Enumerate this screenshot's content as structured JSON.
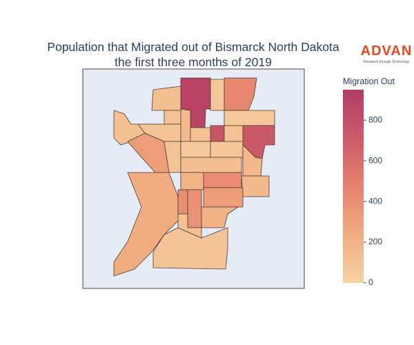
{
  "chart_data": {
    "type": "choropleth",
    "title": [
      "Population that Migrated out of Bismarck North Dakota",
      "the first three months of 2019"
    ],
    "logo": {
      "name": "ADVAN",
      "tagline": "Research through Technology"
    },
    "colorbar_title": "Migration Out",
    "zlim": [
      0,
      950
    ],
    "zticks": [
      0,
      200,
      400,
      600,
      800
    ],
    "colorscale": [
      "#f6d3a4",
      "#f1ac7f",
      "#e6836d",
      "#cc5b69",
      "#b33c63"
    ],
    "values": [
      900,
      80,
      450,
      70,
      750,
      720,
      100,
      120,
      100,
      150,
      110,
      110,
      330,
      90,
      100,
      60,
      80,
      160,
      120,
      150,
      180,
      420,
      320,
      400,
      380,
      240,
      200,
      90,
      110
    ]
  }
}
